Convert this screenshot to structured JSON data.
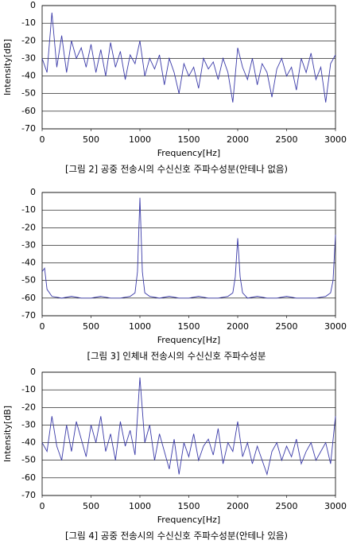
{
  "chart_data": [
    {
      "type": "line",
      "caption": "[그림 2] 공중 전송시의 수신신호 주파수성분(안테나 없음)",
      "x_label": "Frequency[Hz]",
      "y_label": "Intensity[dB]",
      "x": [
        0,
        50,
        100,
        150,
        200,
        250,
        300,
        350,
        400,
        450,
        500,
        550,
        600,
        650,
        700,
        750,
        800,
        850,
        900,
        950,
        1000,
        1050,
        1100,
        1150,
        1200,
        1250,
        1300,
        1350,
        1400,
        1450,
        1500,
        1550,
        1600,
        1650,
        1700,
        1750,
        1800,
        1850,
        1900,
        1950,
        2000,
        2050,
        2100,
        2150,
        2200,
        2250,
        2300,
        2350,
        2400,
        2450,
        2500,
        2550,
        2600,
        2650,
        2700,
        2750,
        2800,
        2850,
        2900,
        2950,
        3000
      ],
      "series": [
        {
          "color": "#3a3aa8",
          "values": [
            -30,
            -38,
            -4,
            -35,
            -17,
            -38,
            -20,
            -30,
            -24,
            -35,
            -22,
            -38,
            -25,
            -40,
            -21,
            -35,
            -26,
            -42,
            -28,
            -33,
            -20,
            -40,
            -30,
            -36,
            -28,
            -45,
            -30,
            -38,
            -50,
            -33,
            -40,
            -35,
            -47,
            -30,
            -36,
            -32,
            -42,
            -30,
            -38,
            -55,
            -24,
            -35,
            -42,
            -30,
            -45,
            -33,
            -38,
            -52,
            -36,
            -30,
            -40,
            -35,
            -48,
            -30,
            -38,
            -27,
            -42,
            -35,
            -55,
            -33,
            -28
          ]
        }
      ],
      "xlim": [
        0,
        3000
      ],
      "ylim": [
        -70,
        0
      ],
      "xticks": [
        0,
        500,
        1000,
        1500,
        2000,
        2500,
        3000
      ],
      "yticks": [
        -70,
        -60,
        -50,
        -40,
        -30,
        -20,
        -10,
        0
      ],
      "grid": true
    },
    {
      "type": "line",
      "caption": "[그림 3] 인체내 전송시의 수신신호 주파수성분",
      "x_label": "Frequency[Hz]",
      "x": [
        0,
        25,
        50,
        100,
        200,
        300,
        400,
        500,
        600,
        700,
        800,
        900,
        950,
        975,
        1000,
        1025,
        1050,
        1100,
        1200,
        1300,
        1400,
        1500,
        1600,
        1700,
        1800,
        1900,
        1950,
        1975,
        2000,
        2025,
        2050,
        2100,
        2200,
        2300,
        2400,
        2500,
        2600,
        2700,
        2800,
        2900,
        2950,
        2975,
        3000
      ],
      "series": [
        {
          "color": "#3a3aa8",
          "values": [
            -45,
            -43,
            -55,
            -59,
            -60,
            -59,
            -60,
            -60,
            -59,
            -60,
            -60,
            -59,
            -57,
            -45,
            -3,
            -45,
            -57,
            -59,
            -60,
            -59,
            -60,
            -60,
            -59,
            -60,
            -60,
            -59,
            -57,
            -48,
            -26,
            -48,
            -57,
            -60,
            -59,
            -60,
            -60,
            -59,
            -60,
            -60,
            -60,
            -59,
            -57,
            -50,
            -24
          ]
        }
      ],
      "xlim": [
        0,
        3000
      ],
      "ylim": [
        -70,
        0
      ],
      "xticks": [
        0,
        500,
        1000,
        1500,
        2000,
        2500,
        3000
      ],
      "yticks": [
        -70,
        -60,
        -50,
        -40,
        -30,
        -20,
        -10,
        0
      ],
      "grid": true
    },
    {
      "type": "line",
      "caption": "[그림 4] 공중 전송시의 수신신호 주파수성분(안테나 있음)",
      "x_label": "Frequency[Hz]",
      "y_label": "Intensity[dB]",
      "x": [
        0,
        50,
        100,
        150,
        200,
        250,
        300,
        350,
        400,
        450,
        500,
        550,
        600,
        650,
        700,
        750,
        800,
        850,
        900,
        950,
        1000,
        1050,
        1100,
        1150,
        1200,
        1250,
        1300,
        1350,
        1400,
        1450,
        1500,
        1550,
        1600,
        1650,
        1700,
        1750,
        1800,
        1850,
        1900,
        1950,
        2000,
        2050,
        2100,
        2150,
        2200,
        2250,
        2300,
        2350,
        2400,
        2450,
        2500,
        2550,
        2600,
        2650,
        2700,
        2750,
        2800,
        2850,
        2900,
        2950,
        3000
      ],
      "series": [
        {
          "color": "#3a3aa8",
          "values": [
            -40,
            -45,
            -25,
            -42,
            -50,
            -30,
            -45,
            -28,
            -38,
            -48,
            -30,
            -40,
            -25,
            -45,
            -35,
            -50,
            -28,
            -42,
            -33,
            -47,
            -3,
            -40,
            -30,
            -50,
            -35,
            -45,
            -55,
            -38,
            -58,
            -40,
            -48,
            -35,
            -50,
            -42,
            -38,
            -47,
            -32,
            -52,
            -40,
            -45,
            -28,
            -48,
            -40,
            -52,
            -42,
            -50,
            -58,
            -45,
            -40,
            -50,
            -42,
            -48,
            -38,
            -52,
            -45,
            -40,
            -50,
            -45,
            -40,
            -52,
            -25
          ]
        }
      ],
      "xlim": [
        0,
        3000
      ],
      "ylim": [
        -70,
        0
      ],
      "xticks": [
        0,
        500,
        1000,
        1500,
        2000,
        2500,
        3000
      ],
      "yticks": [
        -70,
        -60,
        -50,
        -40,
        -30,
        -20,
        -10,
        0
      ],
      "grid": true
    }
  ]
}
